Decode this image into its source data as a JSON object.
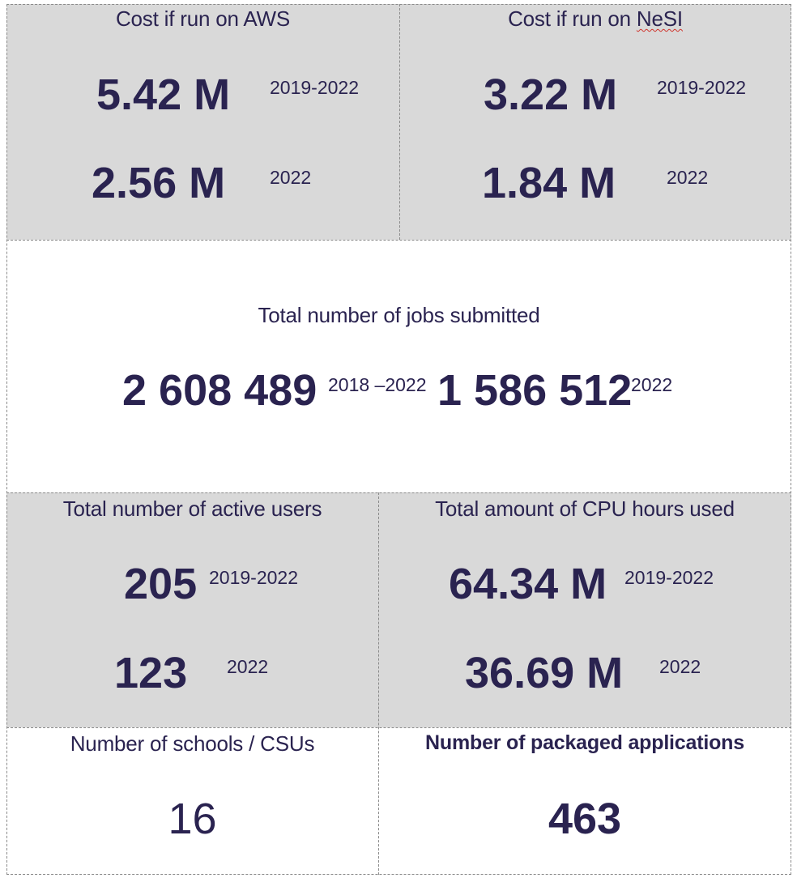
{
  "aws": {
    "title": "Cost if run on AWS",
    "total": {
      "value": "5.42 M",
      "period": "2019-2022"
    },
    "year": {
      "value": "2.56 M",
      "period": "2022"
    }
  },
  "nesi": {
    "title_prefix": "Cost if run on ",
    "title_flagged": "NeSI",
    "total": {
      "value": "3.22 M",
      "period": "2019-2022"
    },
    "year": {
      "value": "1.84 M",
      "period": "2022"
    }
  },
  "jobs": {
    "title": "Total number of jobs submitted",
    "total": {
      "value": "2 608 489",
      "period": "2018 –2022"
    },
    "year": {
      "value": "1 586 512",
      "period": "2022"
    }
  },
  "users": {
    "title": "Total number of active users",
    "total": {
      "value": "205",
      "period": "2019-2022"
    },
    "year": {
      "value": "123",
      "period": "2022"
    }
  },
  "cpu": {
    "title": "Total amount of CPU hours used",
    "total": {
      "value": "64.34 M",
      "period": "2019-2022"
    },
    "year": {
      "value": "36.69 M",
      "period": "2022"
    }
  },
  "schools": {
    "title": "Number of schools / CSUs",
    "value": "16"
  },
  "apps": {
    "title": "Number of packaged applications",
    "value": "463"
  },
  "colors": {
    "text": "#2a2350",
    "grey_cell": "#d9d9d9",
    "spellcheck": "#d0342c"
  }
}
